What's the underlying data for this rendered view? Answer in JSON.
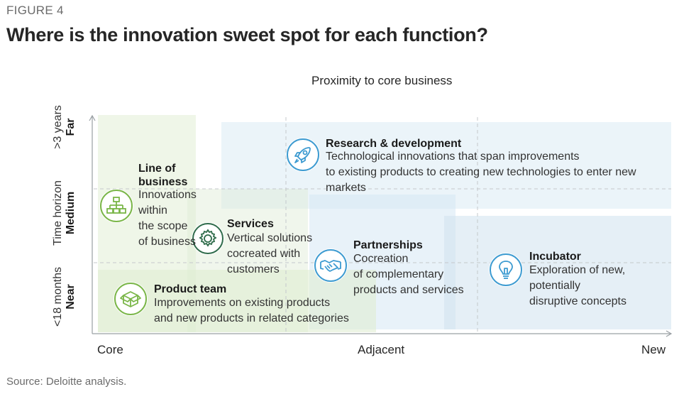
{
  "figure_label": "FIGURE 4",
  "title": "Where is the innovation sweet spot for each function?",
  "x_axis_title": "Proximity to core business",
  "x_ticks": [
    "Core",
    "Adjacent",
    "New"
  ],
  "y_axis": {
    "title": "Time horizon",
    "near_main": "Near",
    "near_sub": "<18 months",
    "medium": "Medium",
    "far_main": "Far",
    "far_sub": ">3 years"
  },
  "functions": {
    "line_of_business": {
      "title_lines": [
        "Line of",
        "business"
      ],
      "desc_lines": [
        "Innovations",
        "within",
        "the scope",
        "of business"
      ],
      "icon": "org-chart-icon"
    },
    "services": {
      "title": "Services",
      "desc_lines": [
        "Vertical solutions",
        "cocreated with",
        "customers"
      ],
      "icon": "gear-icon"
    },
    "product_team": {
      "title": "Product team",
      "desc_lines": [
        "Improvements on existing products",
        "and new products in related categories"
      ],
      "icon": "box-icon"
    },
    "research_development": {
      "title": "Research & development",
      "desc_lines": [
        "Technological innovations that span improvements",
        "to existing products to creating new technologies to enter new markets"
      ],
      "icon": "rocket-icon"
    },
    "partnerships": {
      "title": "Partnerships",
      "desc_lines": [
        "Cocreation",
        "of complementary",
        "products and services"
      ],
      "icon": "handshake-icon"
    },
    "incubator": {
      "title": "Incubator",
      "desc_lines": [
        "Exploration of new, potentially",
        "disruptive concepts"
      ],
      "icon": "lightbulb-icon"
    }
  },
  "colors": {
    "green_accent": "#7ab648",
    "blue_accent": "#3d9bd1",
    "green_zone": "#e2eed6",
    "blue_zone": "#d8eaf4"
  },
  "source": "Source: Deloitte analysis."
}
